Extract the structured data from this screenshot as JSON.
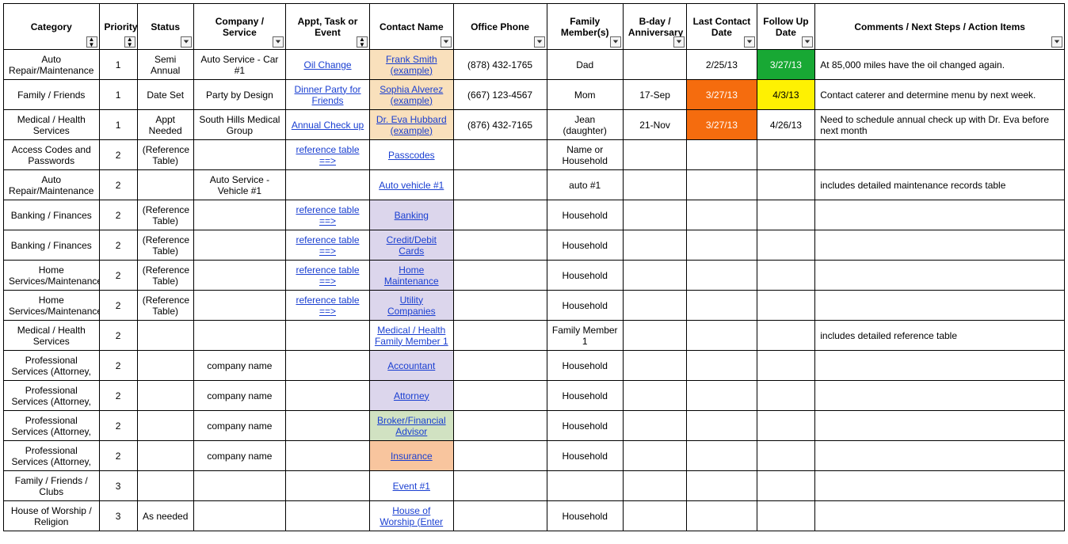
{
  "colors": {
    "bg_default": "#ffffff",
    "bg_orange_contact": "#f9e0bc",
    "bg_lavender": "#dcd6ec",
    "bg_light_green": "#d1e2c2",
    "bg_peach": "#f8c59e",
    "bg_highlight_orange": "#f56c0e",
    "bg_green": "#18a834",
    "bg_yellow": "#fef102",
    "link_color": "#1a3fd1",
    "white_text": "#ffffff",
    "black_text": "#000000"
  },
  "headers": [
    {
      "label": "Category",
      "control": "sort"
    },
    {
      "label": "Priority",
      "control": "sort"
    },
    {
      "label": "Status",
      "control": "filter"
    },
    {
      "label": "Company / Service",
      "control": "filter"
    },
    {
      "label": "Appt, Task or Event",
      "control": "sort"
    },
    {
      "label": "Contact Name",
      "control": "filter"
    },
    {
      "label": "Office Phone",
      "control": "filter"
    },
    {
      "label": "Family Member(s)",
      "control": "filter"
    },
    {
      "label": "B-day / Anniversary",
      "control": "filter"
    },
    {
      "label": "Last Contact Date",
      "control": "filter"
    },
    {
      "label": "Follow Up Date",
      "control": "filter"
    },
    {
      "label": "Comments / Next Steps / Action Items",
      "control": "filter"
    }
  ],
  "rows": [
    {
      "category": "Auto Repair/Maintenance",
      "priority": "1",
      "status": "Semi Annual",
      "company": "Auto Service - Car #1",
      "appt": {
        "text": "Oil Change",
        "link": true
      },
      "contact": {
        "text": "Frank Smith (example)",
        "link": true,
        "bg": "bg_orange_contact"
      },
      "phone": "(878) 432-1765",
      "family": "Dad",
      "bday": "",
      "last": {
        "text": "2/25/13"
      },
      "follow": {
        "text": "3/27/13",
        "bg": "bg_green",
        "fg": "white_text"
      },
      "comments": "At 85,000 miles have the oil changed again."
    },
    {
      "category": "Family / Friends",
      "priority": "1",
      "status": "Date Set",
      "company": "Party by Design",
      "appt": {
        "text": "Dinner Party for Friends",
        "link": true
      },
      "contact": {
        "text": "Sophia Alverez (example)",
        "link": true,
        "bg": "bg_orange_contact"
      },
      "phone": "(667) 123-4567",
      "family": "Mom",
      "bday": "17-Sep",
      "last": {
        "text": "3/27/13",
        "bg": "bg_highlight_orange",
        "fg": "white_text"
      },
      "follow": {
        "text": "4/3/13",
        "bg": "bg_yellow"
      },
      "comments": "Contact caterer and determine menu by next week."
    },
    {
      "category": "Medical / Health Services",
      "priority": "1",
      "status": "Appt Needed",
      "company": "South Hills Medical Group",
      "appt": {
        "text": "Annual Check up",
        "link": true
      },
      "contact": {
        "text": "Dr. Eva Hubbard (example)",
        "link": true,
        "bg": "bg_orange_contact"
      },
      "phone": "(876) 432-7165",
      "family": "Jean (daughter)",
      "bday": "21-Nov",
      "last": {
        "text": "3/27/13",
        "bg": "bg_highlight_orange",
        "fg": "white_text"
      },
      "follow": {
        "text": "4/26/13"
      },
      "comments": "Need to schedule annual check up with Dr. Eva before next month"
    },
    {
      "category": "Access Codes and Passwords",
      "priority": "2",
      "status": "(Reference Table)",
      "company": "",
      "appt": {
        "text": "reference table ==>",
        "link": true
      },
      "contact": {
        "text": "Passcodes",
        "link": true
      },
      "phone": "",
      "family": "Name or Household",
      "bday": "",
      "last": {
        "text": ""
      },
      "follow": {
        "text": ""
      },
      "comments": ""
    },
    {
      "category": "Auto Repair/Maintenance",
      "priority": "2",
      "status": "",
      "company": "Auto Service - Vehicle #1",
      "appt": {
        "text": ""
      },
      "contact": {
        "text": "Auto vehicle #1",
        "link": true
      },
      "phone": "",
      "family": "auto #1",
      "bday": "",
      "last": {
        "text": ""
      },
      "follow": {
        "text": ""
      },
      "comments": "includes detailed maintenance records table"
    },
    {
      "category": "Banking / Finances",
      "priority": "2",
      "status": "(Reference Table)",
      "company": "",
      "appt": {
        "text": "reference table ==>",
        "link": true
      },
      "contact": {
        "text": "Banking",
        "link": true,
        "bg": "bg_lavender"
      },
      "phone": "",
      "family": "Household",
      "bday": "",
      "last": {
        "text": ""
      },
      "follow": {
        "text": ""
      },
      "comments": ""
    },
    {
      "category": "Banking / Finances",
      "priority": "2",
      "status": "(Reference Table)",
      "company": "",
      "appt": {
        "text": "reference table ==>",
        "link": true
      },
      "contact": {
        "text": "Credit/Debit Cards",
        "link": true,
        "bg": "bg_lavender"
      },
      "phone": "",
      "family": "Household",
      "bday": "",
      "last": {
        "text": ""
      },
      "follow": {
        "text": ""
      },
      "comments": ""
    },
    {
      "category": "Home Services/Maintenance",
      "priority": "2",
      "status": "(Reference Table)",
      "company": "",
      "appt": {
        "text": "reference table ==>",
        "link": true
      },
      "contact": {
        "text": "Home Maintenance",
        "link": true,
        "bg": "bg_lavender"
      },
      "phone": "",
      "family": "Household",
      "bday": "",
      "last": {
        "text": ""
      },
      "follow": {
        "text": ""
      },
      "comments": ""
    },
    {
      "category": "Home Services/Maintenance",
      "priority": "2",
      "status": "(Reference Table)",
      "company": "",
      "appt": {
        "text": "reference table ==>",
        "link": true
      },
      "contact": {
        "text": "Utility Companies",
        "link": true,
        "bg": "bg_lavender"
      },
      "phone": "",
      "family": "Household",
      "bday": "",
      "last": {
        "text": ""
      },
      "follow": {
        "text": ""
      },
      "comments": ""
    },
    {
      "category": "Medical / Health Services",
      "priority": "2",
      "status": "",
      "company": "",
      "appt": {
        "text": ""
      },
      "contact": {
        "text": "Medical / Health Family Member 1",
        "link": true
      },
      "phone": "",
      "family": "Family Member 1",
      "bday": "",
      "last": {
        "text": ""
      },
      "follow": {
        "text": ""
      },
      "comments": "includes detailed reference table"
    },
    {
      "category": "Professional Services (Attorney,",
      "priority": "2",
      "status": "",
      "company": "company name",
      "appt": {
        "text": ""
      },
      "contact": {
        "text": "Accountant",
        "link": true,
        "bg": "bg_lavender"
      },
      "phone": "",
      "family": "Household",
      "bday": "",
      "last": {
        "text": ""
      },
      "follow": {
        "text": ""
      },
      "comments": ""
    },
    {
      "category": "Professional Services (Attorney,",
      "priority": "2",
      "status": "",
      "company": "company name",
      "appt": {
        "text": ""
      },
      "contact": {
        "text": "Attorney",
        "link": true,
        "bg": "bg_lavender"
      },
      "phone": "",
      "family": "Household",
      "bday": "",
      "last": {
        "text": ""
      },
      "follow": {
        "text": ""
      },
      "comments": ""
    },
    {
      "category": "Professional Services (Attorney,",
      "priority": "2",
      "status": "",
      "company": "company name",
      "appt": {
        "text": ""
      },
      "contact": {
        "text": "Broker/Financial Advisor",
        "link": true,
        "bg": "bg_light_green"
      },
      "phone": "",
      "family": "Household",
      "bday": "",
      "last": {
        "text": ""
      },
      "follow": {
        "text": ""
      },
      "comments": ""
    },
    {
      "category": "Professional Services (Attorney,",
      "priority": "2",
      "status": "",
      "company": "company name",
      "appt": {
        "text": ""
      },
      "contact": {
        "text": "Insurance",
        "link": true,
        "bg": "bg_peach"
      },
      "phone": "",
      "family": "Household",
      "bday": "",
      "last": {
        "text": ""
      },
      "follow": {
        "text": ""
      },
      "comments": ""
    },
    {
      "category": "Family / Friends / Clubs",
      "priority": "3",
      "status": "",
      "company": "",
      "appt": {
        "text": ""
      },
      "contact": {
        "text": "Event #1",
        "link": true
      },
      "phone": "",
      "family": "",
      "bday": "",
      "last": {
        "text": ""
      },
      "follow": {
        "text": ""
      },
      "comments": ""
    },
    {
      "category": "House of Worship / Religion",
      "priority": "3",
      "status": "As needed",
      "company": "",
      "appt": {
        "text": ""
      },
      "contact": {
        "text": "House of Worship (Enter",
        "link": true
      },
      "phone": "",
      "family": "Household",
      "bday": "",
      "last": {
        "text": ""
      },
      "follow": {
        "text": ""
      },
      "comments": ""
    }
  ]
}
